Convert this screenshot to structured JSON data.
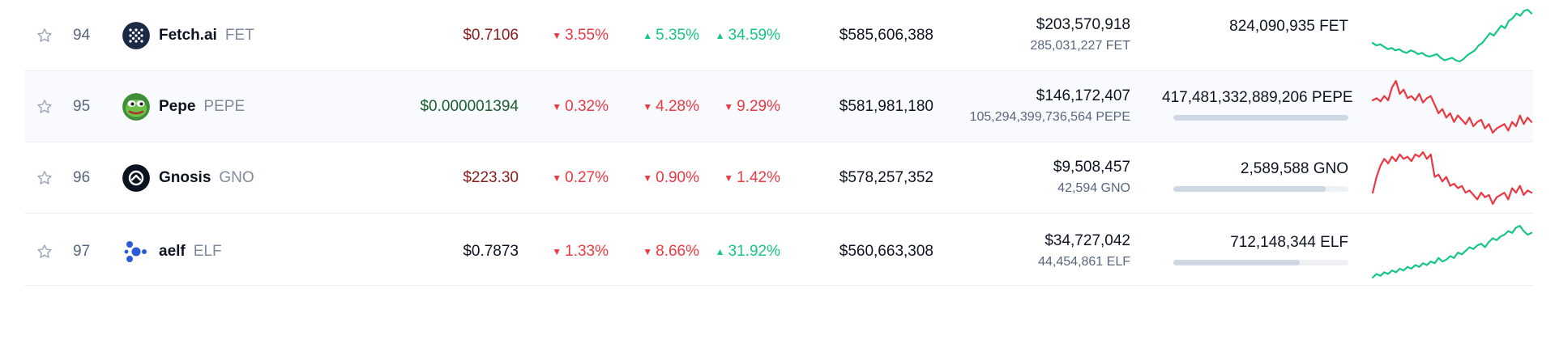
{
  "colors": {
    "up": "#16c784",
    "down": "#ea3943",
    "price_red": "#8b1a1a",
    "price_green": "#1a5c2e",
    "price_black": "#0d1421"
  },
  "rows": [
    {
      "rank": "94",
      "name": "Fetch.ai",
      "symbol": "FET",
      "logo_icon": "fetchai-logo-icon",
      "price": "$0.7106",
      "price_color": "price_red",
      "pct_1h": "3.55%",
      "dir_1h": "down",
      "pct_24h": "5.35%",
      "dir_24h": "up",
      "pct_7d": "34.59%",
      "dir_7d": "up",
      "market_cap": "$585,606,388",
      "volume_usd": "$203,570,918",
      "volume_coin": "285,031,227 FET",
      "supply": "824,090,935 FET",
      "supply_fraction": null,
      "trend": "up",
      "sparkline": [
        30,
        32,
        31,
        33,
        35,
        34,
        36,
        35,
        37,
        38,
        36,
        37,
        39,
        38,
        40,
        41,
        40,
        39,
        42,
        44,
        43,
        42,
        44,
        45,
        43,
        40,
        38,
        36,
        32,
        30,
        26,
        22,
        24,
        20,
        16,
        18,
        12,
        10,
        6,
        8,
        4,
        3,
        6
      ]
    },
    {
      "rank": "95",
      "name": "Pepe",
      "symbol": "PEPE",
      "logo_icon": "pepe-logo-icon",
      "price": "$0.000001394",
      "price_color": "price_green",
      "pct_1h": "0.32%",
      "dir_1h": "down",
      "pct_24h": "4.28%",
      "dir_24h": "down",
      "pct_7d": "9.29%",
      "dir_7d": "down",
      "market_cap": "$581,981,180",
      "volume_usd": "$146,172,407",
      "volume_coin": "105,294,399,736,564 PEPE",
      "supply": "417,481,332,889,206 PEPE",
      "supply_fraction": 1.0,
      "trend": "down",
      "sparkline": [
        22,
        20,
        23,
        18,
        22,
        10,
        4,
        16,
        12,
        20,
        18,
        22,
        16,
        24,
        20,
        18,
        26,
        34,
        30,
        38,
        34,
        42,
        36,
        40,
        44,
        38,
        46,
        42,
        40,
        48,
        44,
        52,
        48,
        46,
        44,
        50,
        42,
        46,
        36,
        44,
        38,
        42
      ]
    },
    {
      "rank": "96",
      "name": "Gnosis",
      "symbol": "GNO",
      "logo_icon": "gnosis-logo-icon",
      "price": "$223.30",
      "price_color": "price_red",
      "pct_1h": "0.27%",
      "dir_1h": "down",
      "pct_24h": "0.90%",
      "dir_24h": "down",
      "pct_7d": "1.42%",
      "dir_7d": "down",
      "market_cap": "$578,257,352",
      "volume_usd": "$9,508,457",
      "volume_coin": "42,594 GNO",
      "supply": "2,589,588 GNO",
      "supply_fraction": 0.87,
      "trend": "down",
      "sparkline": [
        44,
        30,
        20,
        14,
        18,
        12,
        16,
        10,
        14,
        12,
        16,
        10,
        12,
        8,
        14,
        10,
        30,
        28,
        34,
        30,
        38,
        36,
        40,
        38,
        44,
        42,
        46,
        50,
        44,
        48,
        46,
        54,
        48,
        46,
        44,
        50,
        40,
        44,
        38,
        46,
        42,
        44
      ]
    },
    {
      "rank": "97",
      "name": "aelf",
      "symbol": "ELF",
      "logo_icon": "aelf-logo-icon",
      "price": "$0.7873",
      "price_color": "price_black",
      "pct_1h": "1.33%",
      "dir_1h": "down",
      "pct_24h": "8.66%",
      "dir_24h": "down",
      "pct_7d": "31.92%",
      "dir_7d": "up",
      "market_cap": "$560,663,308",
      "volume_usd": "$34,727,042",
      "volume_coin": "44,454,861 ELF",
      "supply": "712,148,344 ELF",
      "supply_fraction": 0.72,
      "trend": "up",
      "sparkline": [
        62,
        58,
        60,
        56,
        58,
        54,
        56,
        52,
        54,
        50,
        52,
        48,
        50,
        46,
        48,
        44,
        46,
        40,
        44,
        42,
        38,
        40,
        34,
        36,
        32,
        28,
        30,
        26,
        24,
        28,
        22,
        18,
        20,
        16,
        14,
        10,
        12,
        6,
        4,
        10,
        14,
        12
      ]
    }
  ]
}
